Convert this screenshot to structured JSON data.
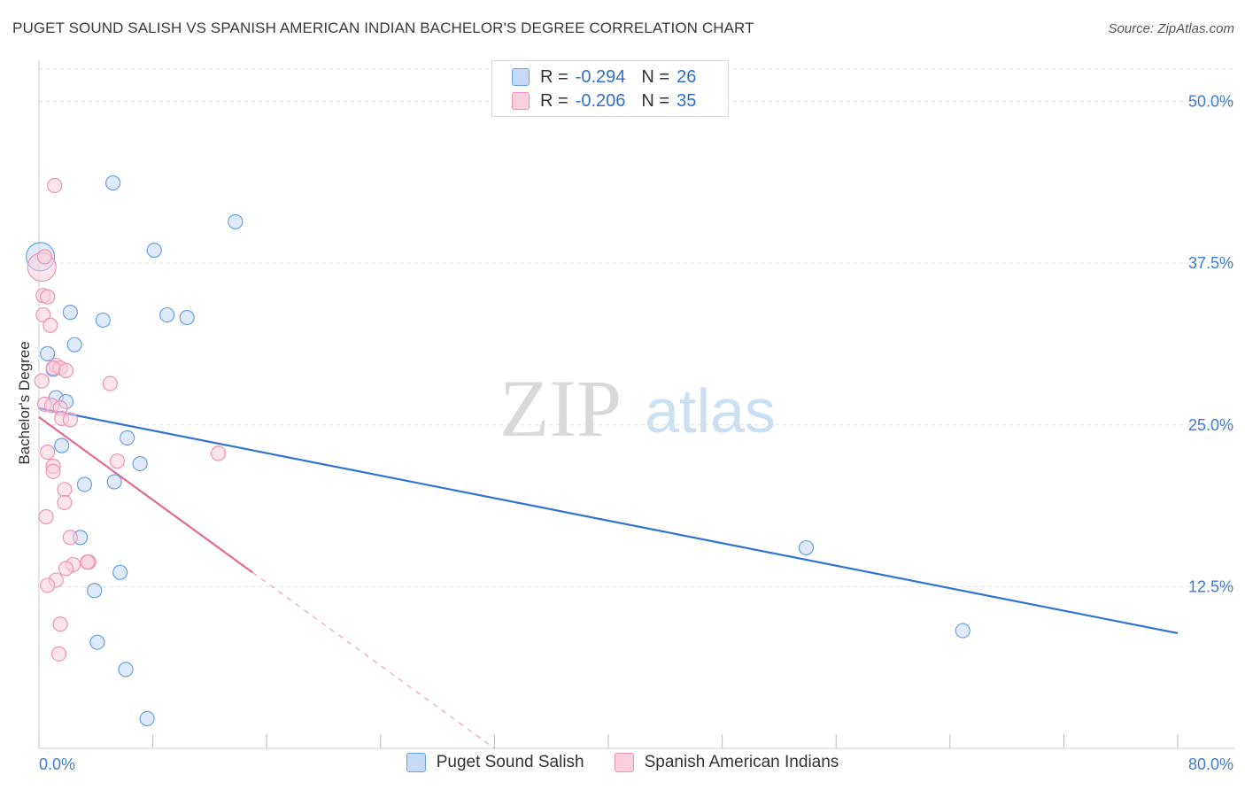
{
  "title": "PUGET SOUND SALISH VS SPANISH AMERICAN INDIAN BACHELOR'S DEGREE CORRELATION CHART",
  "source": "Source: ZipAtlas.com",
  "watermark": {
    "zip": "ZIP",
    "atlas": "atlas"
  },
  "legend": {
    "r_label": "R =",
    "n_label": "N =",
    "rows": [
      {
        "r": "-0.294",
        "n": "26"
      },
      {
        "r": "-0.206",
        "n": "35"
      }
    ]
  },
  "chart_data": {
    "type": "scatter",
    "title": "PUGET SOUND SALISH VS SPANISH AMERICAN INDIAN BACHELOR'S DEGREE CORRELATION CHART",
    "xlabel": "",
    "ylabel": "Bachelor's Degree",
    "xlim": [
      0,
      80
    ],
    "ylim": [
      0,
      52.5
    ],
    "x_tick_labels": [
      "0.0%",
      "80.0%"
    ],
    "y_ticks": [
      12.5,
      25.0,
      37.5,
      50.0
    ],
    "y_tick_labels": [
      "12.5%",
      "25.0%",
      "37.5%",
      "50.0%"
    ],
    "grid": true,
    "legend_position": "top-center",
    "series": [
      {
        "name": "Puget Sound Salish",
        "color": "#6aa0e8",
        "fill": "#c5daf6",
        "line_color": "#2f74d0",
        "r": -0.294,
        "n": 26,
        "trend": {
          "x": [
            0,
            80
          ],
          "y": [
            26.3,
            8.9
          ]
        },
        "points": [
          {
            "x": 0.1,
            "y": 38.0,
            "big": true
          },
          {
            "x": 5.2,
            "y": 43.7
          },
          {
            "x": 13.8,
            "y": 40.7
          },
          {
            "x": 8.1,
            "y": 38.5
          },
          {
            "x": 2.2,
            "y": 33.7
          },
          {
            "x": 4.5,
            "y": 33.1
          },
          {
            "x": 9.0,
            "y": 33.5
          },
          {
            "x": 10.4,
            "y": 33.3
          },
          {
            "x": 2.5,
            "y": 31.2
          },
          {
            "x": 0.6,
            "y": 30.5
          },
          {
            "x": 1.0,
            "y": 29.3
          },
          {
            "x": 1.2,
            "y": 27.1
          },
          {
            "x": 1.9,
            "y": 26.8
          },
          {
            "x": 6.2,
            "y": 24.0
          },
          {
            "x": 1.6,
            "y": 23.4
          },
          {
            "x": 7.1,
            "y": 22.0
          },
          {
            "x": 3.2,
            "y": 20.4
          },
          {
            "x": 5.3,
            "y": 20.6
          },
          {
            "x": 2.9,
            "y": 16.3
          },
          {
            "x": 5.7,
            "y": 13.6
          },
          {
            "x": 3.9,
            "y": 12.2
          },
          {
            "x": 53.9,
            "y": 15.5
          },
          {
            "x": 4.1,
            "y": 8.2
          },
          {
            "x": 6.1,
            "y": 6.1
          },
          {
            "x": 64.9,
            "y": 9.1
          },
          {
            "x": 7.6,
            "y": 2.3
          }
        ]
      },
      {
        "name": "Spanish American Indians",
        "color": "#ee93b3",
        "fill": "#f9cfdd",
        "line_color": "#e26a95",
        "r": -0.206,
        "n": 35,
        "trend": {
          "x": [
            0,
            15
          ],
          "y": [
            25.6,
            13.6
          ]
        },
        "trend_dashed": {
          "x": [
            15,
            32
          ],
          "y": [
            13.6,
            0
          ]
        },
        "points": [
          {
            "x": 0.2,
            "y": 37.2,
            "big": true
          },
          {
            "x": 1.1,
            "y": 43.5
          },
          {
            "x": 0.4,
            "y": 38.0
          },
          {
            "x": 0.3,
            "y": 35.0
          },
          {
            "x": 0.6,
            "y": 34.9
          },
          {
            "x": 0.3,
            "y": 33.5
          },
          {
            "x": 0.8,
            "y": 32.7
          },
          {
            "x": 1.2,
            "y": 29.6
          },
          {
            "x": 1.5,
            "y": 29.4
          },
          {
            "x": 1.0,
            "y": 29.4
          },
          {
            "x": 1.9,
            "y": 29.2
          },
          {
            "x": 0.2,
            "y": 28.4
          },
          {
            "x": 5.0,
            "y": 28.2
          },
          {
            "x": 0.4,
            "y": 26.6
          },
          {
            "x": 0.9,
            "y": 26.5
          },
          {
            "x": 1.5,
            "y": 26.3
          },
          {
            "x": 1.6,
            "y": 25.5
          },
          {
            "x": 2.2,
            "y": 25.4
          },
          {
            "x": 0.6,
            "y": 22.9
          },
          {
            "x": 12.6,
            "y": 22.8
          },
          {
            "x": 5.5,
            "y": 22.2
          },
          {
            "x": 1.0,
            "y": 21.8
          },
          {
            "x": 1.0,
            "y": 21.4
          },
          {
            "x": 1.8,
            "y": 20.0
          },
          {
            "x": 1.8,
            "y": 19.0
          },
          {
            "x": 0.5,
            "y": 17.9
          },
          {
            "x": 2.2,
            "y": 16.3
          },
          {
            "x": 3.5,
            "y": 14.4
          },
          {
            "x": 2.4,
            "y": 14.2
          },
          {
            "x": 1.9,
            "y": 13.9
          },
          {
            "x": 3.4,
            "y": 14.4
          },
          {
            "x": 1.2,
            "y": 13.0
          },
          {
            "x": 0.6,
            "y": 12.6
          },
          {
            "x": 1.5,
            "y": 9.6
          },
          {
            "x": 1.4,
            "y": 7.3
          }
        ]
      }
    ]
  }
}
